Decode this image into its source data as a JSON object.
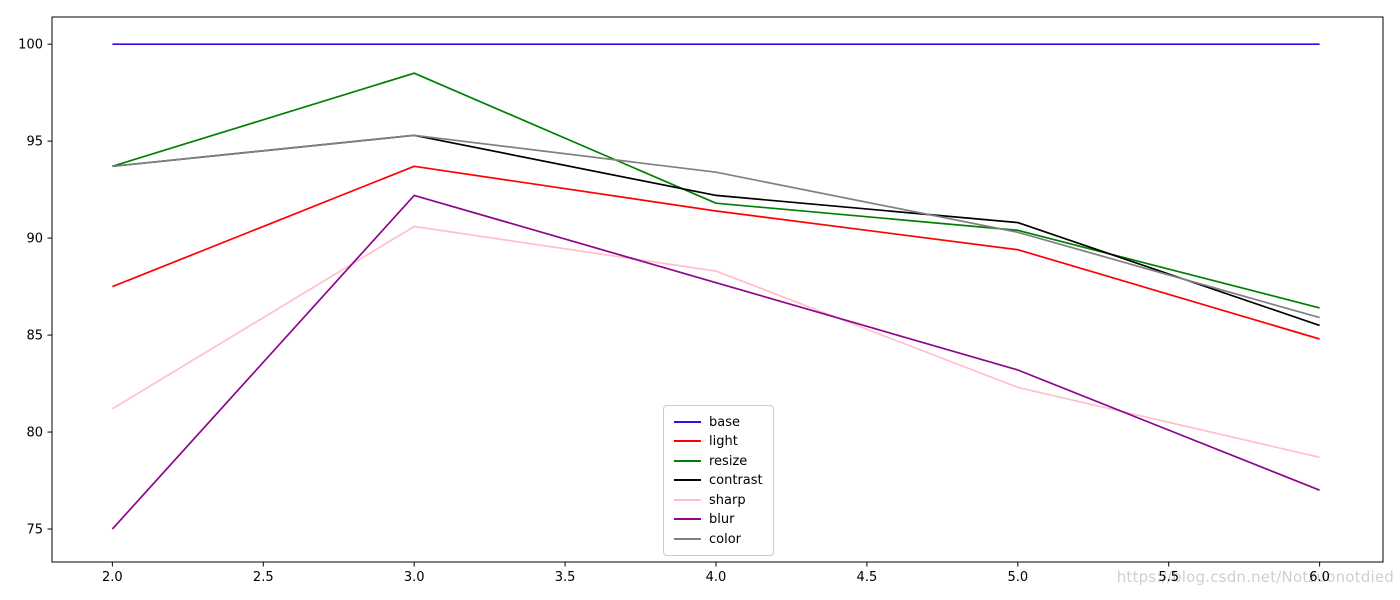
{
  "watermark": {
    "text": "https://blog.csdn.net/Notzuonotdied"
  },
  "chart_data": {
    "type": "line",
    "title": "",
    "xlabel": "",
    "ylabel": "",
    "grid": false,
    "x": [
      2,
      3,
      4,
      5,
      6
    ],
    "series": [
      {
        "name": "base",
        "color": "#3d08f0",
        "values": [
          100,
          100,
          100,
          100,
          100
        ]
      },
      {
        "name": "light",
        "color": "#ff0000",
        "values": [
          87.5,
          93.7,
          91.4,
          89.4,
          84.8
        ]
      },
      {
        "name": "resize",
        "color": "#008000",
        "values": [
          93.7,
          98.5,
          91.8,
          90.4,
          86.4
        ]
      },
      {
        "name": "contrast",
        "color": "#000000",
        "values": [
          93.7,
          95.3,
          92.2,
          90.8,
          85.5
        ]
      },
      {
        "name": "sharp",
        "color": "#ffc0cb",
        "values": [
          81.2,
          90.6,
          88.3,
          82.3,
          78.7
        ]
      },
      {
        "name": "blur",
        "color": "#8d068d",
        "values": [
          75.0,
          92.2,
          87.7,
          83.2,
          77.0
        ]
      },
      {
        "name": "color",
        "color": "#808080",
        "values": [
          93.7,
          95.3,
          93.4,
          90.3,
          85.9
        ]
      }
    ],
    "legend": {
      "position": "lower-center-inside",
      "entries": [
        "base",
        "light",
        "resize",
        "contrast",
        "sharp",
        "blur",
        "color"
      ]
    },
    "x_ticks": {
      "values": [
        2.0,
        2.5,
        3.0,
        3.5,
        4.0,
        4.5,
        5.0,
        5.5,
        6.0
      ],
      "labels": [
        "2.0",
        "2.5",
        "3.0",
        "3.5",
        "4.0",
        "4.5",
        "5.0",
        "5.5",
        "6.0"
      ]
    },
    "y_ticks": {
      "values": [
        75,
        80,
        85,
        90,
        95,
        100
      ],
      "labels": [
        "75",
        "80",
        "85",
        "90",
        "95",
        "100"
      ]
    },
    "xlim": [
      1.8,
      6.21
    ],
    "ylim": [
      73.3,
      101.4
    ]
  }
}
